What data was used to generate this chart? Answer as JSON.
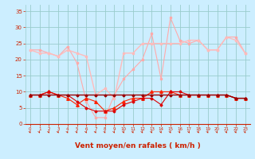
{
  "x": [
    0,
    1,
    2,
    3,
    4,
    5,
    6,
    7,
    8,
    9,
    10,
    11,
    12,
    13,
    14,
    15,
    16,
    17,
    18,
    19,
    20,
    21,
    22,
    23
  ],
  "line1": [
    23,
    23,
    22,
    21,
    24,
    19,
    7,
    2,
    2,
    9,
    14,
    17,
    20,
    28,
    14,
    33,
    26,
    25,
    26,
    23,
    23,
    27,
    27,
    22
  ],
  "line2": [
    23,
    22,
    22,
    21,
    23,
    22,
    21,
    9,
    11,
    8,
    22,
    22,
    25,
    25,
    25,
    25,
    25,
    26,
    26,
    23,
    23,
    27,
    26,
    22
  ],
  "line3": [
    9,
    9,
    10,
    9,
    8,
    6,
    8,
    7,
    4,
    5,
    7,
    8,
    8,
    10,
    10,
    10,
    9,
    9,
    9,
    9,
    9,
    9,
    8,
    8
  ],
  "line4": [
    9,
    9,
    10,
    9,
    9,
    7,
    5,
    4,
    4,
    4,
    6,
    7,
    8,
    8,
    6,
    10,
    10,
    9,
    9,
    9,
    9,
    9,
    8,
    8
  ],
  "line5": [
    9,
    9,
    9,
    9,
    9,
    9,
    9,
    9,
    9,
    9,
    9,
    9,
    9,
    9,
    9,
    9,
    9,
    9,
    9,
    9,
    9,
    9,
    8,
    8
  ],
  "bg_color": "#cceeff",
  "grid_color": "#99cccc",
  "line1_color": "#ffaaaa",
  "line2_color": "#ffbbbb",
  "line3_color": "#ff2200",
  "line4_color": "#dd0000",
  "line5_color": "#990000",
  "xlabel": "Vent moyen/en rafales ( km/h )",
  "ylim": [
    0,
    37
  ],
  "yticks": [
    0,
    5,
    10,
    15,
    20,
    25,
    30,
    35
  ],
  "xlim": [
    -0.5,
    23.5
  ],
  "tick_color": "#cc2200",
  "label_color": "#cc2200"
}
